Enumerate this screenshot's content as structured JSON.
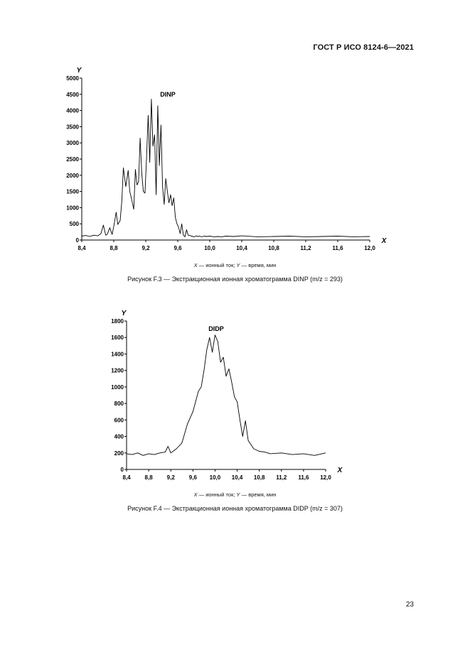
{
  "header": {
    "standard": "ГОСТ Р ИСО 8124-6—2021"
  },
  "page_number": "23",
  "figures": [
    {
      "caption": "Рисунок F.3 — Экстракционная ионная хроматограмма DINP (m/z = 293)",
      "axis_note": {
        "x_symbol": "X",
        "x_text": " — ионный ток; ",
        "y_symbol": "Y",
        "y_text": " — время, мин"
      }
    },
    {
      "caption": "Рисунок F.4 — Экстракционная ионная хроматограмма DIDP (m/z = 307)",
      "axis_note": {
        "x_symbol": "X",
        "x_text": " — ионный ток; ",
        "y_symbol": "Y",
        "y_text": " — время, мин"
      }
    }
  ],
  "chart_data": [
    {
      "type": "line",
      "peak_label": "DINP",
      "xlabel": "X",
      "ylabel": "Y",
      "xlim": [
        8.4,
        12.0
      ],
      "ylim": [
        0,
        5000
      ],
      "x_ticks": [
        "8,4",
        "8,8",
        "9,2",
        "9,6",
        "10,0",
        "10,4",
        "10,8",
        "11,2",
        "11,6",
        "12,0"
      ],
      "y_ticks": [
        "0",
        "500",
        "1000",
        "1500",
        "2000",
        "2500",
        "3000",
        "3500",
        "4000",
        "4500",
        "5000"
      ],
      "grid": false,
      "series": [
        {
          "x": [
            8.4,
            8.45,
            8.5,
            8.55,
            8.6,
            8.64,
            8.67,
            8.7,
            8.72,
            8.75,
            8.78,
            8.8,
            8.83,
            8.85,
            8.88,
            8.9,
            8.92,
            8.95,
            8.98,
            9.0,
            9.02,
            9.05,
            9.07,
            9.09,
            9.11,
            9.13,
            9.15,
            9.17,
            9.19,
            9.21,
            9.23,
            9.25,
            9.27,
            9.29,
            9.31,
            9.33,
            9.35,
            9.37,
            9.39,
            9.41,
            9.43,
            9.45,
            9.47,
            9.49,
            9.51,
            9.53,
            9.55,
            9.57,
            9.59,
            9.61,
            9.63,
            9.65,
            9.67,
            9.69,
            9.71,
            9.73,
            9.75,
            9.77,
            9.79,
            9.81,
            9.83,
            9.85,
            9.87,
            9.9,
            9.93,
            9.96,
            10.0,
            10.05,
            10.1,
            10.15,
            10.2,
            10.3,
            10.4,
            10.6,
            10.8,
            11.0,
            11.2,
            11.4,
            11.6,
            11.8,
            12.0
          ],
          "y": [
            120,
            140,
            110,
            150,
            130,
            200,
            460,
            150,
            180,
            380,
            170,
            420,
            860,
            480,
            600,
            1200,
            2230,
            1650,
            2150,
            1500,
            1300,
            950,
            2180,
            1700,
            1800,
            3150,
            2050,
            1500,
            1450,
            2550,
            3850,
            2400,
            4350,
            2900,
            3250,
            1400,
            4150,
            2300,
            3550,
            1650,
            1100,
            1900,
            1500,
            1150,
            1400,
            1060,
            1300,
            700,
            500,
            400,
            200,
            500,
            150,
            100,
            320,
            150,
            140,
            120,
            110,
            100,
            130,
            110,
            120,
            100,
            120,
            110,
            120,
            100,
            110,
            100,
            120,
            110,
            130,
            100,
            110,
            120,
            100,
            110,
            120,
            100,
            110
          ]
        }
      ]
    },
    {
      "type": "line",
      "peak_label": "DIDP",
      "xlabel": "X",
      "ylabel": "Y",
      "xlim": [
        8.4,
        12.0
      ],
      "ylim": [
        0,
        1800
      ],
      "x_ticks": [
        "8,4",
        "8,8",
        "9,2",
        "9,6",
        "10,0",
        "10,4",
        "10,8",
        "11,2",
        "11,6",
        "12,0"
      ],
      "y_ticks": [
        "0",
        "200",
        "400",
        "600",
        "800",
        "1000",
        "1200",
        "1400",
        "1600",
        "1800"
      ],
      "grid": false,
      "series": [
        {
          "x": [
            8.4,
            8.5,
            8.6,
            8.7,
            8.8,
            8.9,
            9.0,
            9.1,
            9.15,
            9.2,
            9.3,
            9.4,
            9.5,
            9.6,
            9.7,
            9.75,
            9.8,
            9.85,
            9.9,
            9.95,
            10.0,
            10.05,
            10.1,
            10.15,
            10.2,
            10.25,
            10.3,
            10.35,
            10.4,
            10.45,
            10.5,
            10.55,
            10.6,
            10.7,
            10.8,
            10.9,
            11.0,
            11.2,
            11.4,
            11.6,
            11.8,
            12.0
          ],
          "y": [
            190,
            180,
            200,
            170,
            190,
            180,
            200,
            210,
            280,
            200,
            250,
            320,
            550,
            700,
            950,
            1000,
            1200,
            1450,
            1600,
            1420,
            1630,
            1550,
            1300,
            1360,
            1130,
            1220,
            1060,
            880,
            820,
            600,
            400,
            590,
            350,
            250,
            220,
            210,
            190,
            200,
            180,
            190,
            170,
            200
          ]
        }
      ]
    }
  ]
}
